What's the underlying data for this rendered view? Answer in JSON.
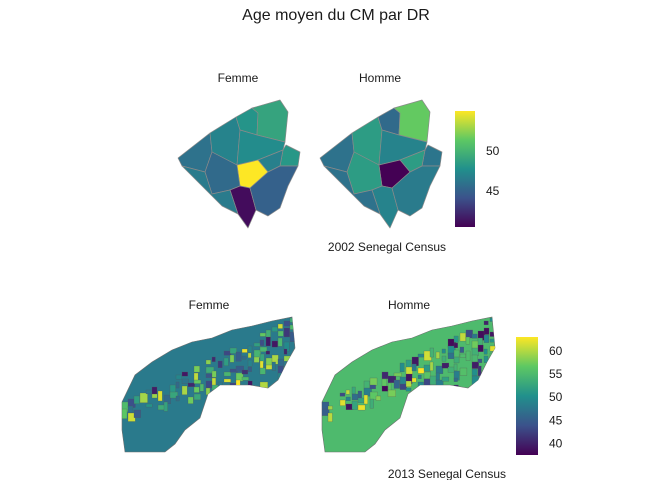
{
  "title": "Age moyen du CM par DR",
  "colors": {
    "scale": [
      "#440154",
      "#3b528b",
      "#21908c",
      "#5dc863",
      "#fde725"
    ]
  },
  "panels": [
    {
      "caption": "2002 Senegal Census",
      "facets": [
        "Femme",
        "Homme"
      ],
      "legend": {
        "min": 40.5,
        "max": 55,
        "ticks": [
          45,
          50
        ]
      },
      "femme_regions": [
        46,
        47,
        48,
        49,
        47.5,
        48.2,
        46.8,
        55,
        45.5,
        41,
        45,
        46.5
      ],
      "homme_regions": [
        46,
        48.5,
        45.5,
        51.5,
        47,
        46.2,
        48.5,
        40.5,
        48.5,
        47,
        46.5,
        46
      ]
    },
    {
      "caption": "2013 Senegal Census",
      "facets": [
        "Femme",
        "Homme"
      ],
      "legend": {
        "min": 37.5,
        "max": 63,
        "ticks": [
          40,
          45,
          50,
          55,
          60
        ]
      },
      "femme_base": 48,
      "homme_base": 55
    }
  ]
}
